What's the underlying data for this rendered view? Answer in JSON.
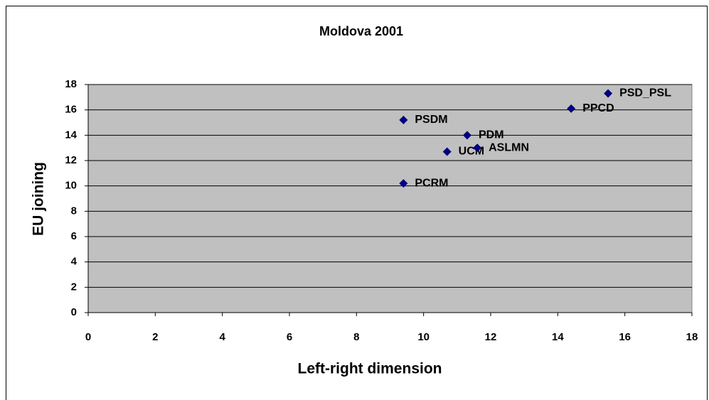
{
  "chart_data": {
    "type": "scatter",
    "title": "Moldova 2001",
    "x_label": "Left-right dimension",
    "y_label": "EU joining",
    "series": [
      {
        "color": "#000080",
        "labels": [
          "PSDM",
          "PDM",
          "UCM",
          "ASLMN",
          "PCRM",
          "PPCD",
          "PSD_PSL"
        ],
        "x": [
          9.4,
          11.3,
          10.7,
          11.6,
          9.4,
          14.4,
          15.5
        ],
        "values": [
          15.2,
          14.0,
          12.7,
          13.0,
          10.2,
          16.1,
          17.3
        ]
      }
    ],
    "xlim": [
      0,
      18
    ],
    "xticks": [
      0,
      2,
      4,
      6,
      8,
      10,
      12,
      14,
      16,
      18
    ],
    "ylim": [
      0,
      18
    ],
    "yticks": [
      0,
      2,
      4,
      6,
      8,
      10,
      12,
      14,
      16,
      18
    ],
    "grid": true,
    "plot_background": "#c0c0c0"
  }
}
